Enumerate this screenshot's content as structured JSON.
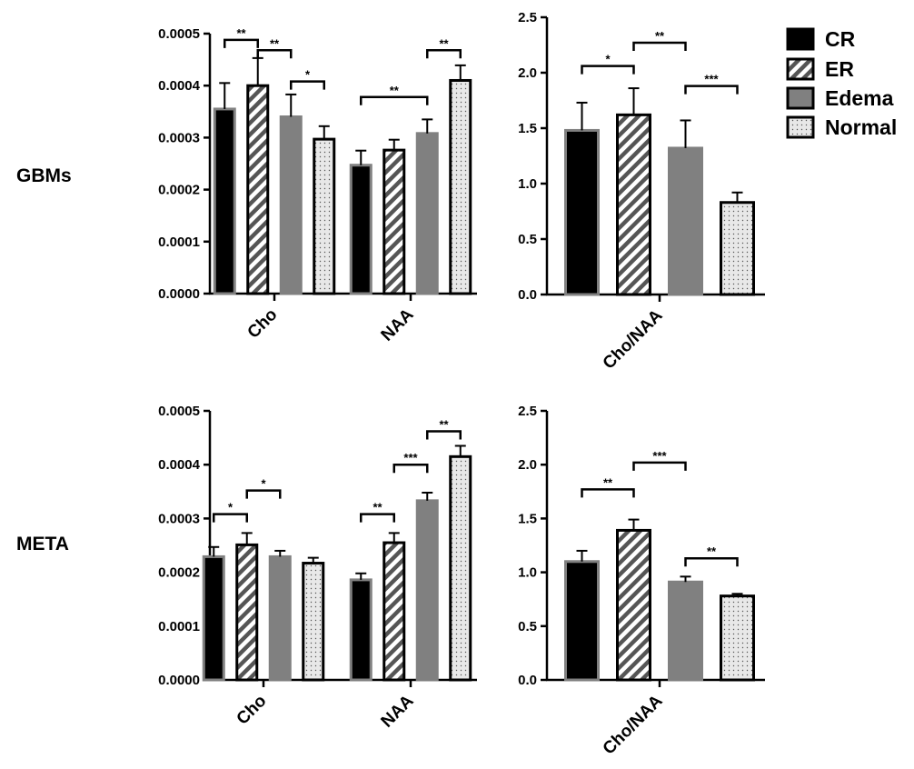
{
  "row_labels": [
    "GBMs",
    "META"
  ],
  "legend": [
    {
      "label": "CR",
      "style": "solid"
    },
    {
      "label": "ER",
      "style": "hatch"
    },
    {
      "label": "Edema",
      "style": "gray"
    },
    {
      "label": "Normal",
      "style": "dots"
    }
  ],
  "colors": {
    "solid": "#000000",
    "gray": "#808080",
    "hatch_bg": "#ffffff",
    "dots_bg": "#e8e8e8"
  },
  "chart_data": [
    {
      "id": "gbm-cho-naa",
      "type": "bar",
      "row": "GBMs",
      "categories": [
        "Cho",
        "NAA"
      ],
      "series": [
        {
          "name": "CR",
          "values": [
            0.000355,
            0.000247
          ],
          "errors": [
            5e-05,
            2.8e-05
          ]
        },
        {
          "name": "ER",
          "values": [
            0.0004,
            0.000276
          ],
          "errors": [
            5.3e-05,
            2e-05
          ]
        },
        {
          "name": "Edema",
          "values": [
            0.00034,
            0.000308
          ],
          "errors": [
            4.3e-05,
            2.7e-05
          ]
        },
        {
          "name": "Normal",
          "values": [
            0.000297,
            0.00041
          ],
          "errors": [
            2.5e-05,
            2.9e-05
          ]
        }
      ],
      "ylim": [
        0,
        0.0005
      ],
      "yticks": [
        "0.0000",
        "0.0001",
        "0.0002",
        "0.0003",
        "0.0004",
        "0.0005"
      ],
      "significance": [
        {
          "cat": 0,
          "from": 0,
          "to": 1,
          "y": 0.000488,
          "label": "**"
        },
        {
          "cat": 0,
          "from": 1,
          "to": 2,
          "y": 0.000468,
          "label": "**"
        },
        {
          "cat": 0,
          "from": 2,
          "to": 3,
          "y": 0.000408,
          "label": "*"
        },
        {
          "cat": 1,
          "from": 0,
          "to": 2,
          "y": 0.000378,
          "label": "**"
        },
        {
          "cat": 1,
          "from": 2,
          "to": 3,
          "y": 0.000468,
          "label": "**"
        }
      ]
    },
    {
      "id": "gbm-ratio",
      "type": "bar",
      "row": "GBMs",
      "categories": [
        "Cho/NAA"
      ],
      "series": [
        {
          "name": "CR",
          "values": [
            1.48
          ],
          "errors": [
            0.25
          ]
        },
        {
          "name": "ER",
          "values": [
            1.62
          ],
          "errors": [
            0.24
          ]
        },
        {
          "name": "Edema",
          "values": [
            1.32
          ],
          "errors": [
            0.25
          ]
        },
        {
          "name": "Normal",
          "values": [
            0.83
          ],
          "errors": [
            0.09
          ]
        }
      ],
      "ylim": [
        0,
        2.5
      ],
      "yticks": [
        "0.0",
        "0.5",
        "1.0",
        "1.5",
        "2.0",
        "2.5"
      ],
      "significance": [
        {
          "cat": 0,
          "from": 0,
          "to": 1,
          "y": 2.06,
          "label": "*"
        },
        {
          "cat": 0,
          "from": 1,
          "to": 2,
          "y": 2.27,
          "label": "**"
        },
        {
          "cat": 0,
          "from": 2,
          "to": 3,
          "y": 1.88,
          "label": "***"
        }
      ]
    },
    {
      "id": "meta-cho-naa",
      "type": "bar",
      "row": "META",
      "categories": [
        "Cho",
        "NAA"
      ],
      "series": [
        {
          "name": "CR",
          "values": [
            0.000229,
            0.000186
          ],
          "errors": [
            1.8e-05,
            1.2e-05
          ]
        },
        {
          "name": "ER",
          "values": [
            0.000251,
            0.000255
          ],
          "errors": [
            2.2e-05,
            1.8e-05
          ]
        },
        {
          "name": "Edema",
          "values": [
            0.000229,
            0.000333
          ],
          "errors": [
            1.1e-05,
            1.5e-05
          ]
        },
        {
          "name": "Normal",
          "values": [
            0.000217,
            0.000415
          ],
          "errors": [
            1e-05,
            2e-05
          ]
        }
      ],
      "ylim": [
        0,
        0.0005
      ],
      "yticks": [
        "0.0000",
        "0.0001",
        "0.0002",
        "0.0003",
        "0.0004",
        "0.0005"
      ],
      "significance": [
        {
          "cat": 0,
          "from": 0,
          "to": 1,
          "y": 0.000308,
          "label": "*"
        },
        {
          "cat": 0,
          "from": 1,
          "to": 2,
          "y": 0.000352,
          "label": "*"
        },
        {
          "cat": 1,
          "from": 0,
          "to": 1,
          "y": 0.000308,
          "label": "**"
        },
        {
          "cat": 1,
          "from": 1,
          "to": 2,
          "y": 0.0004,
          "label": "***"
        },
        {
          "cat": 1,
          "from": 2,
          "to": 3,
          "y": 0.000462,
          "label": "**"
        }
      ]
    },
    {
      "id": "meta-ratio",
      "type": "bar",
      "row": "META",
      "categories": [
        "Cho/NAA"
      ],
      "series": [
        {
          "name": "CR",
          "values": [
            1.1
          ],
          "errors": [
            0.1
          ]
        },
        {
          "name": "ER",
          "values": [
            1.39
          ],
          "errors": [
            0.1
          ]
        },
        {
          "name": "Edema",
          "values": [
            0.91
          ],
          "errors": [
            0.05
          ]
        },
        {
          "name": "Normal",
          "values": [
            0.78
          ],
          "errors": [
            0.02
          ]
        }
      ],
      "ylim": [
        0,
        2.5
      ],
      "yticks": [
        "0.0",
        "0.5",
        "1.0",
        "1.5",
        "2.0",
        "2.5"
      ],
      "significance": [
        {
          "cat": 0,
          "from": 0,
          "to": 1,
          "y": 1.77,
          "label": "**"
        },
        {
          "cat": 0,
          "from": 1,
          "to": 2,
          "y": 2.02,
          "label": "***"
        },
        {
          "cat": 0,
          "from": 2,
          "to": 3,
          "y": 1.13,
          "label": "**"
        }
      ]
    }
  ]
}
